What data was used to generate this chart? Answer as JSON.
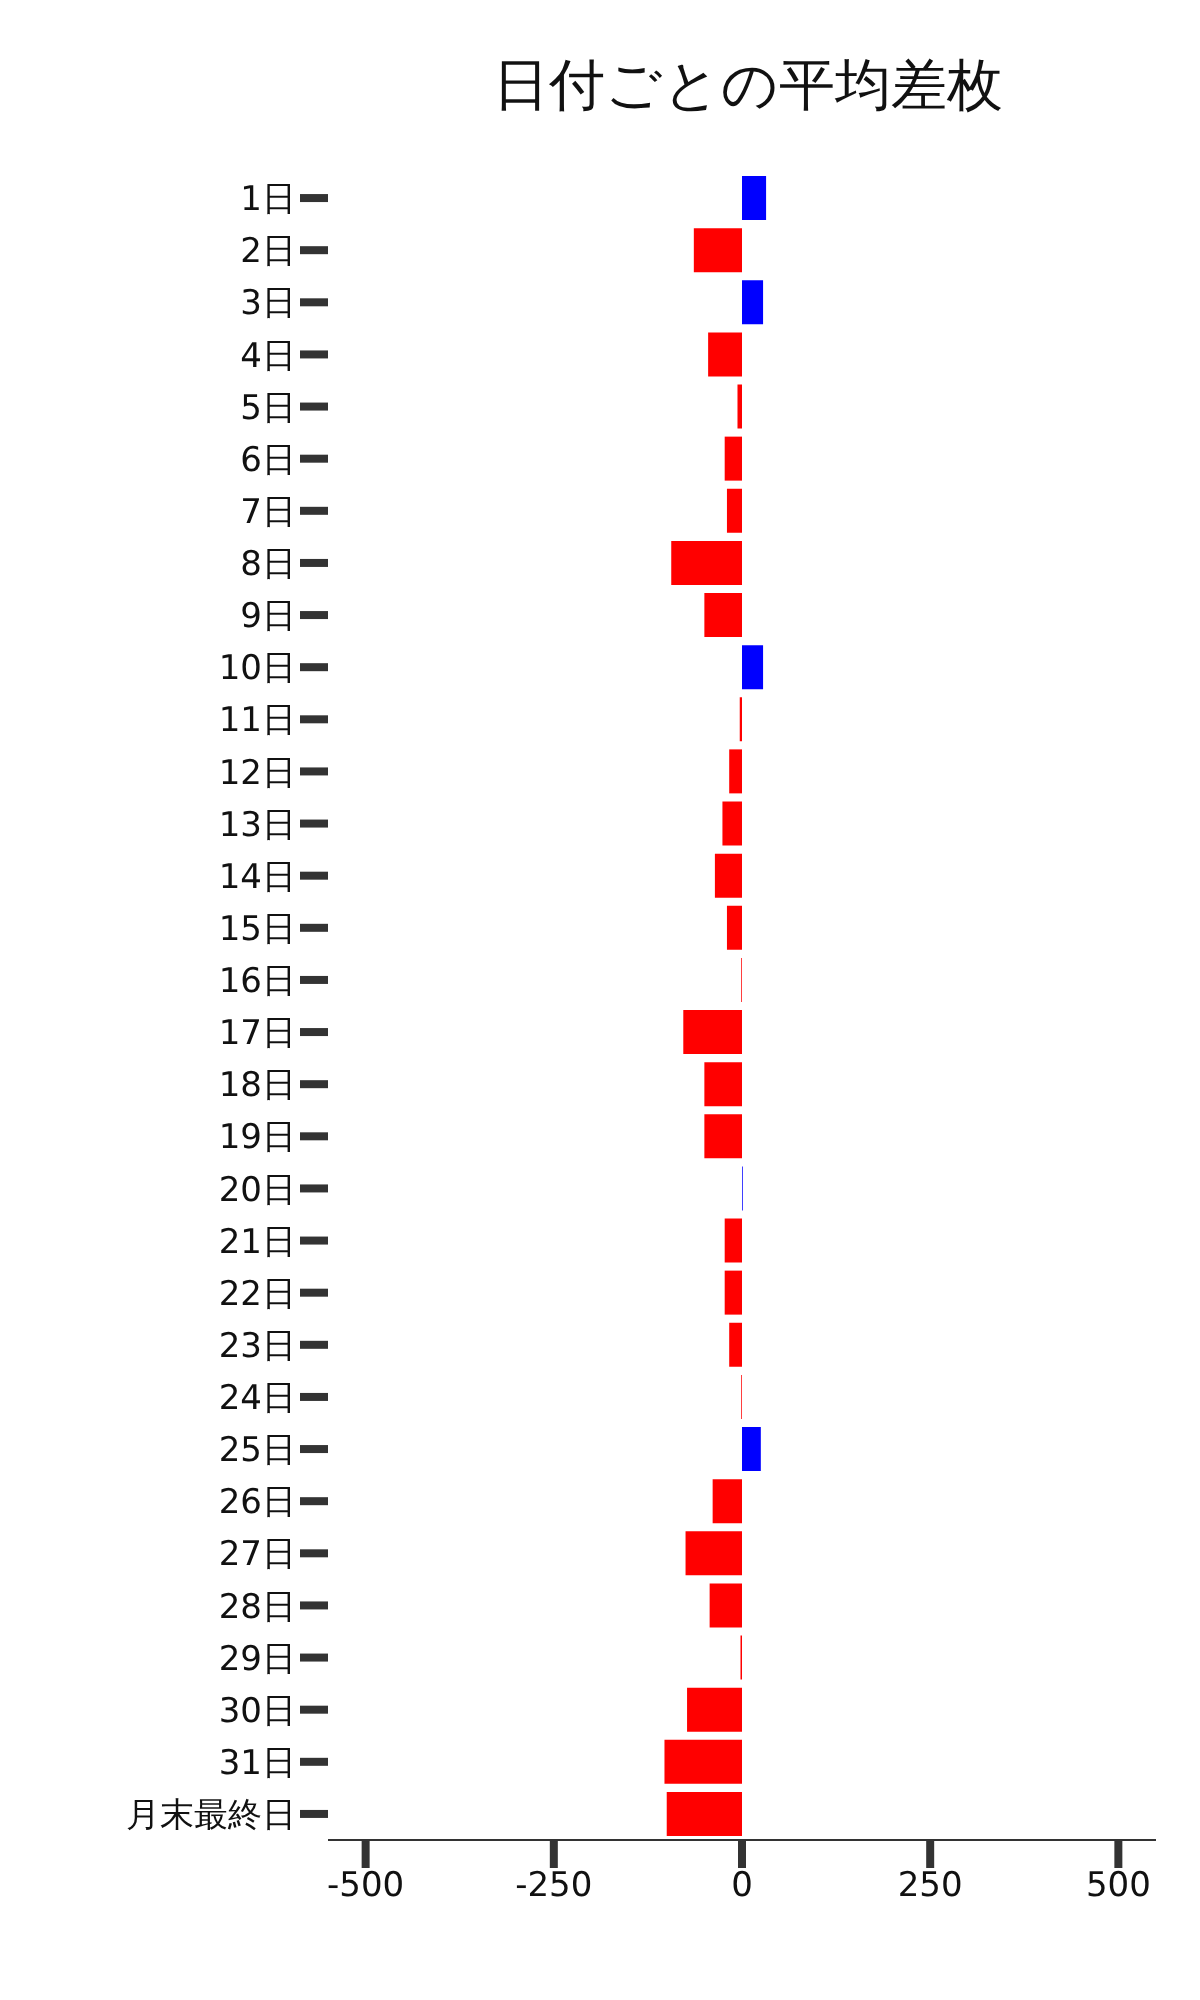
{
  "chart_data": {
    "type": "bar",
    "orientation": "horizontal",
    "title": "日付ごとの平均差枚",
    "categories": [
      "1日",
      "2日",
      "3日",
      "4日",
      "5日",
      "6日",
      "7日",
      "8日",
      "9日",
      "10日",
      "11日",
      "12日",
      "13日",
      "14日",
      "15日",
      "16日",
      "17日",
      "18日",
      "19日",
      "20日",
      "21日",
      "22日",
      "23日",
      "24日",
      "25日",
      "26日",
      "27日",
      "28日",
      "29日",
      "30日",
      "31日",
      "月末最終日"
    ],
    "values": [
      32,
      -64,
      28,
      -45,
      -6,
      -23,
      -20,
      -94,
      -50,
      28,
      -3,
      -17,
      -26,
      -36,
      -20,
      -1,
      -78,
      -50,
      -50,
      1,
      -23,
      -23,
      -17,
      -1,
      25,
      -39,
      -75,
      -43,
      -2,
      -73,
      -103,
      -100
    ],
    "colors": [
      "#0000ff",
      "#ff0000",
      "#0000ff",
      "#ff0000",
      "#ff0000",
      "#ff0000",
      "#ff0000",
      "#ff0000",
      "#ff0000",
      "#0000ff",
      "#ff0000",
      "#ff0000",
      "#ff0000",
      "#ff0000",
      "#ff0000",
      "#ff0000",
      "#ff0000",
      "#ff0000",
      "#ff0000",
      "#0000ff",
      "#ff0000",
      "#ff0000",
      "#ff0000",
      "#ff0000",
      "#0000ff",
      "#ff0000",
      "#ff0000",
      "#ff0000",
      "#ff0000",
      "#ff0000",
      "#ff0000",
      "#ff0000"
    ],
    "xlim": [
      -550,
      550
    ],
    "xticks": [
      -500,
      -250,
      0,
      250,
      500
    ]
  }
}
